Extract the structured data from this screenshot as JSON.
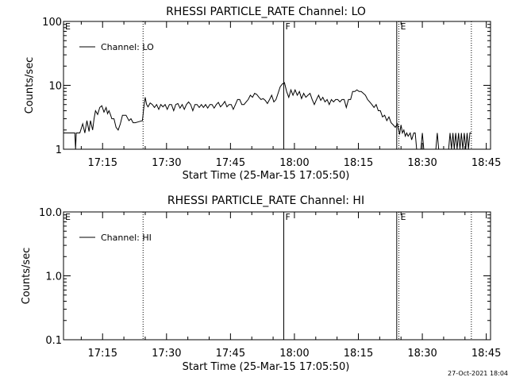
{
  "footer": {
    "timestamp": "27-Oct-2021 18:04"
  },
  "chart_data": [
    {
      "type": "line",
      "title": "RHESSI PARTICLE_RATE Channel: LO",
      "xlabel": "Start Time (25-Mar-15 17:05:50)",
      "ylabel": "Counts/sec",
      "y_scale": "log",
      "ylim": [
        1,
        100
      ],
      "y_ticks": [
        "1",
        "10",
        "100"
      ],
      "xlim": [
        "17:05:50",
        "18:46:00"
      ],
      "x_ticks": [
        "17:15",
        "17:30",
        "17:45",
        "18:00",
        "18:15",
        "18:30",
        "18:45"
      ],
      "legend": {
        "position": "top-left",
        "entries": [
          "Channel: LO"
        ]
      },
      "markers": [
        {
          "label": "E",
          "time": "17:05:50",
          "style": "none"
        },
        {
          "label": "",
          "time": "17:24:30",
          "style": "dotted"
        },
        {
          "label": "F",
          "time": "17:57:30",
          "style": "solid"
        },
        {
          "label": "",
          "time": "18:24:00",
          "style": "solid"
        },
        {
          "label": "E",
          "time": "18:24:30",
          "style": "dotted"
        },
        {
          "label": "",
          "time": "18:41:30",
          "style": "dotted"
        }
      ],
      "series": [
        {
          "name": "Channel: LO",
          "points": [
            [
              "17:05:50",
              1.8
            ],
            [
              "17:08:30",
              1.8
            ],
            [
              "17:08:40",
              1.0
            ],
            [
              "17:08:50",
              1.8
            ],
            [
              "17:09:40",
              1.8
            ],
            [
              "17:10:20",
              2.5
            ],
            [
              "17:10:50",
              1.8
            ],
            [
              "17:11:20",
              2.8
            ],
            [
              "17:11:50",
              1.9
            ],
            [
              "17:12:10",
              2.8
            ],
            [
              "17:12:40",
              2.0
            ],
            [
              "17:13:00",
              3.0
            ],
            [
              "17:13:20",
              4.0
            ],
            [
              "17:13:50",
              3.5
            ],
            [
              "17:14:20",
              4.5
            ],
            [
              "17:14:50",
              4.8
            ],
            [
              "17:15:20",
              3.8
            ],
            [
              "17:15:50",
              4.5
            ],
            [
              "17:16:10",
              3.6
            ],
            [
              "17:16:30",
              4.0
            ],
            [
              "17:16:50",
              3.5
            ],
            [
              "17:17:10",
              3.0
            ],
            [
              "17:17:40",
              3.0
            ],
            [
              "17:18:10",
              2.2
            ],
            [
              "17:18:40",
              2.0
            ],
            [
              "17:19:10",
              2.5
            ],
            [
              "17:19:40",
              3.4
            ],
            [
              "17:20:30",
              3.4
            ],
            [
              "17:21:10",
              2.8
            ],
            [
              "17:21:40",
              3.0
            ],
            [
              "17:22:10",
              2.6
            ],
            [
              "17:22:40",
              2.6
            ],
            [
              "17:23:30",
              2.7
            ],
            [
              "17:24:20",
              2.8
            ],
            [
              "17:24:40",
              4.5
            ],
            [
              "17:25:00",
              6.5
            ],
            [
              "17:25:20",
              5.0
            ],
            [
              "17:25:40",
              4.6
            ],
            [
              "17:26:10",
              5.3
            ],
            [
              "17:26:40",
              5.0
            ],
            [
              "17:27:10",
              4.5
            ],
            [
              "17:27:40",
              5.0
            ],
            [
              "17:28:10",
              4.2
            ],
            [
              "17:28:40",
              5.0
            ],
            [
              "17:29:10",
              4.6
            ],
            [
              "17:29:40",
              5.0
            ],
            [
              "17:30:10",
              4.2
            ],
            [
              "17:30:40",
              5.0
            ],
            [
              "17:31:10",
              5.0
            ],
            [
              "17:31:40",
              4.0
            ],
            [
              "17:32:10",
              5.0
            ],
            [
              "17:32:40",
              5.2
            ],
            [
              "17:33:10",
              4.4
            ],
            [
              "17:33:40",
              5.0
            ],
            [
              "17:34:10",
              4.2
            ],
            [
              "17:34:40",
              5.0
            ],
            [
              "17:35:10",
              5.5
            ],
            [
              "17:35:40",
              5.0
            ],
            [
              "17:36:10",
              4.0
            ],
            [
              "17:36:40",
              5.0
            ],
            [
              "17:37:10",
              5.0
            ],
            [
              "17:37:40",
              4.5
            ],
            [
              "17:38:10",
              5.0
            ],
            [
              "17:38:40",
              4.5
            ],
            [
              "17:39:10",
              5.0
            ],
            [
              "17:39:40",
              4.4
            ],
            [
              "17:40:10",
              5.0
            ],
            [
              "17:40:40",
              5.0
            ],
            [
              "17:41:10",
              4.4
            ],
            [
              "17:41:40",
              5.0
            ],
            [
              "17:42:10",
              5.4
            ],
            [
              "17:42:40",
              4.6
            ],
            [
              "17:43:10",
              5.0
            ],
            [
              "17:43:40",
              5.6
            ],
            [
              "17:44:10",
              4.6
            ],
            [
              "17:44:40",
              5.0
            ],
            [
              "17:45:10",
              5.0
            ],
            [
              "17:45:40",
              4.2
            ],
            [
              "17:46:10",
              5.0
            ],
            [
              "17:46:40",
              6.0
            ],
            [
              "17:47:10",
              6.0
            ],
            [
              "17:47:40",
              5.0
            ],
            [
              "17:48:10",
              5.0
            ],
            [
              "17:48:40",
              5.5
            ],
            [
              "17:49:10",
              6.0
            ],
            [
              "17:49:40",
              7.0
            ],
            [
              "17:50:10",
              6.5
            ],
            [
              "17:50:40",
              7.5
            ],
            [
              "17:51:10",
              7.2
            ],
            [
              "17:51:40",
              6.5
            ],
            [
              "17:52:10",
              6.0
            ],
            [
              "17:52:40",
              6.2
            ],
            [
              "17:53:10",
              5.8
            ],
            [
              "17:53:40",
              5.2
            ],
            [
              "17:54:10",
              6.0
            ],
            [
              "17:54:40",
              7.0
            ],
            [
              "17:55:10",
              5.5
            ],
            [
              "17:55:40",
              6.0
            ],
            [
              "17:56:10",
              7.5
            ],
            [
              "17:56:40",
              9.5
            ],
            [
              "17:57:10",
              10.5
            ],
            [
              "17:57:40",
              11.0
            ],
            [
              "17:58:10",
              8.0
            ],
            [
              "17:58:40",
              6.5
            ],
            [
              "17:59:10",
              8.5
            ],
            [
              "17:59:40",
              7.0
            ],
            [
              "18:00:10",
              8.5
            ],
            [
              "18:00:40",
              7.0
            ],
            [
              "18:01:10",
              8.0
            ],
            [
              "18:01:40",
              6.2
            ],
            [
              "18:02:10",
              7.5
            ],
            [
              "18:02:40",
              6.5
            ],
            [
              "18:03:10",
              7.0
            ],
            [
              "18:03:40",
              7.5
            ],
            [
              "18:04:10",
              6.0
            ],
            [
              "18:04:40",
              5.0
            ],
            [
              "18:05:10",
              6.0
            ],
            [
              "18:05:40",
              7.0
            ],
            [
              "18:06:10",
              5.8
            ],
            [
              "18:06:40",
              6.5
            ],
            [
              "18:07:10",
              5.5
            ],
            [
              "18:07:40",
              6.0
            ],
            [
              "18:08:10",
              5.0
            ],
            [
              "18:08:40",
              6.0
            ],
            [
              "18:09:10",
              5.5
            ],
            [
              "18:09:40",
              6.0
            ],
            [
              "18:10:10",
              6.0
            ],
            [
              "18:10:40",
              5.5
            ],
            [
              "18:11:10",
              6.0
            ],
            [
              "18:11:40",
              6.0
            ],
            [
              "18:12:10",
              4.5
            ],
            [
              "18:12:40",
              6.0
            ],
            [
              "18:13:10",
              6.0
            ],
            [
              "18:13:40",
              8.0
            ],
            [
              "18:14:10",
              8.0
            ],
            [
              "18:14:40",
              8.5
            ],
            [
              "18:15:10",
              8.0
            ],
            [
              "18:15:40",
              8.0
            ],
            [
              "18:16:10",
              7.5
            ],
            [
              "18:16:40",
              7.0
            ],
            [
              "18:17:10",
              6.0
            ],
            [
              "18:17:40",
              5.5
            ],
            [
              "18:18:10",
              5.0
            ],
            [
              "18:18:40",
              4.5
            ],
            [
              "18:19:10",
              5.0
            ],
            [
              "18:19:40",
              4.0
            ],
            [
              "18:20:10",
              4.0
            ],
            [
              "18:20:40",
              3.2
            ],
            [
              "18:21:10",
              3.4
            ],
            [
              "18:21:40",
              2.8
            ],
            [
              "18:22:10",
              3.2
            ],
            [
              "18:22:40",
              2.6
            ],
            [
              "18:23:10",
              2.4
            ],
            [
              "18:23:40",
              2.2
            ],
            [
              "18:24:10",
              2.5
            ],
            [
              "18:24:40",
              1.7
            ],
            [
              "18:25:00",
              2.4
            ],
            [
              "18:25:20",
              1.8
            ],
            [
              "18:25:40",
              2.0
            ],
            [
              "18:26:00",
              1.6
            ],
            [
              "18:26:20",
              1.8
            ],
            [
              "18:26:40",
              1.6
            ],
            [
              "18:27:10",
              1.8
            ],
            [
              "18:27:30",
              1.4
            ],
            [
              "18:28:00",
              1.8
            ],
            [
              "18:28:20",
              1.8
            ],
            [
              "18:28:40",
              1.0
            ],
            [
              "18:29:40",
              1.0
            ],
            [
              "18:30:00",
              1.8
            ],
            [
              "18:30:20",
              1.0
            ],
            [
              "18:33:10",
              1.0
            ],
            [
              "18:33:30",
              1.8
            ],
            [
              "18:33:50",
              1.0
            ],
            [
              "18:36:10",
              1.0
            ],
            [
              "18:36:30",
              1.8
            ],
            [
              "18:36:50",
              1.0
            ],
            [
              "18:37:10",
              1.8
            ],
            [
              "18:37:30",
              1.0
            ],
            [
              "18:37:50",
              1.8
            ],
            [
              "18:38:10",
              1.0
            ],
            [
              "18:38:30",
              1.8
            ],
            [
              "18:38:50",
              1.0
            ],
            [
              "18:39:10",
              1.8
            ],
            [
              "18:39:30",
              1.0
            ],
            [
              "18:39:50",
              1.8
            ],
            [
              "18:40:10",
              1.0
            ],
            [
              "18:40:30",
              1.8
            ],
            [
              "18:40:50",
              1.0
            ],
            [
              "18:41:10",
              1.8
            ],
            [
              "18:41:30",
              1.8
            ]
          ]
        }
      ]
    },
    {
      "type": "line",
      "title": "RHESSI PARTICLE_RATE Channel: HI",
      "xlabel": "Start Time (25-Mar-15 17:05:50)",
      "ylabel": "Counts/sec",
      "y_scale": "log",
      "ylim": [
        0.1,
        10
      ],
      "y_ticks": [
        "0.1",
        "1.0",
        "10.0"
      ],
      "xlim": [
        "17:05:50",
        "18:46:00"
      ],
      "x_ticks": [
        "17:15",
        "17:30",
        "17:45",
        "18:00",
        "18:15",
        "18:30",
        "18:45"
      ],
      "legend": {
        "position": "top-left",
        "entries": [
          "Channel: HI"
        ]
      },
      "markers": [
        {
          "label": "E",
          "time": "17:05:50",
          "style": "none"
        },
        {
          "label": "",
          "time": "17:24:30",
          "style": "dotted"
        },
        {
          "label": "F",
          "time": "17:57:30",
          "style": "solid"
        },
        {
          "label": "",
          "time": "18:24:00",
          "style": "solid"
        },
        {
          "label": "E",
          "time": "18:24:30",
          "style": "dotted"
        },
        {
          "label": "",
          "time": "18:41:30",
          "style": "dotted"
        }
      ],
      "series": [
        {
          "name": "Channel: HI",
          "points": []
        }
      ]
    }
  ]
}
